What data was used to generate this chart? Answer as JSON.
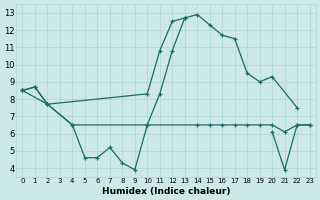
{
  "xlabel": "Humidex (Indice chaleur)",
  "bg_color": "#cce8e8",
  "line_color": "#1a6b6b",
  "grid_color": "#aed4d4",
  "x_ticks": [
    0,
    1,
    2,
    3,
    4,
    5,
    6,
    7,
    8,
    9,
    10,
    11,
    12,
    13,
    14,
    15,
    16,
    17,
    18,
    19,
    20,
    21,
    22,
    23
  ],
  "y_ticks": [
    4,
    5,
    6,
    7,
    8,
    9,
    10,
    11,
    12,
    13
  ],
  "ylim": [
    3.5,
    13.5
  ],
  "xlim": [
    -0.5,
    23.5
  ],
  "series": [
    {
      "x": [
        0,
        1,
        2,
        10,
        11,
        12,
        13,
        14,
        15,
        16,
        17,
        18,
        19,
        20,
        22
      ],
      "y": [
        8.5,
        8.7,
        7.7,
        8.3,
        10.8,
        12.5,
        12.7,
        12.9,
        12.3,
        11.7,
        11.5,
        9.5,
        9.0,
        9.3,
        7.5
      ]
    },
    {
      "x": [
        0,
        1,
        2,
        4,
        5,
        6,
        7,
        8,
        9,
        10,
        11,
        12,
        13
      ],
      "y": [
        8.5,
        8.7,
        7.7,
        6.5,
        4.6,
        4.6,
        5.2,
        4.3,
        3.9,
        6.5,
        8.3,
        10.8,
        12.7
      ]
    },
    {
      "x": [
        0,
        2,
        4,
        10,
        14,
        15,
        16,
        17,
        18,
        19,
        20,
        21,
        22,
        23
      ],
      "y": [
        8.5,
        7.7,
        6.5,
        6.5,
        6.5,
        6.5,
        6.5,
        6.5,
        6.5,
        6.5,
        6.5,
        6.1,
        6.5,
        6.5
      ]
    },
    {
      "x": [
        20,
        21,
        22,
        23
      ],
      "y": [
        6.1,
        3.9,
        6.5,
        6.5
      ]
    }
  ]
}
